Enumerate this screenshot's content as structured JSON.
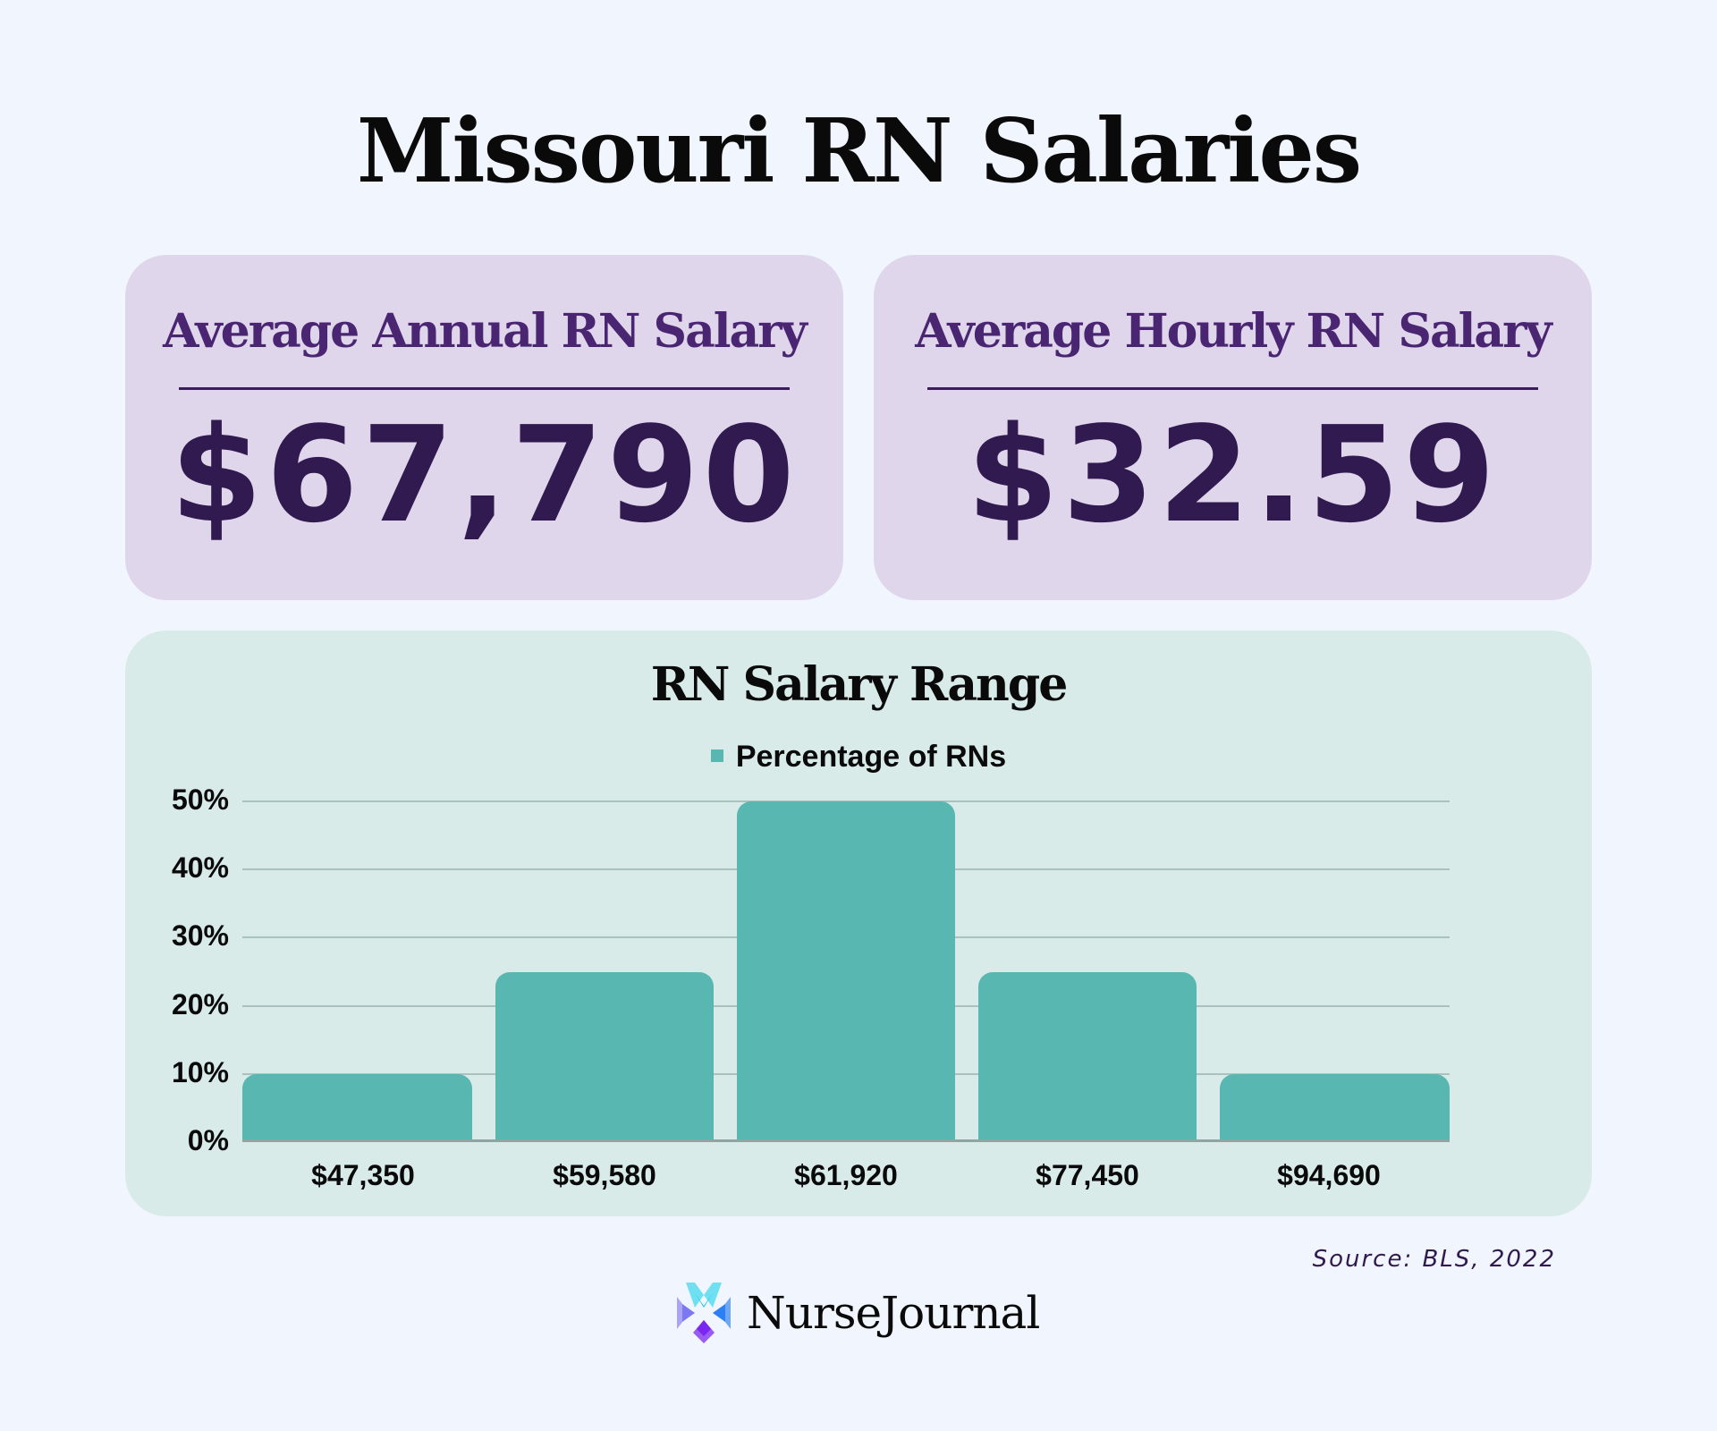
{
  "page": {
    "title": "Missouri RN Salaries"
  },
  "cards": [
    {
      "label": "Average Annual RN Salary",
      "value": "$67,790"
    },
    {
      "label": "Average Hourly RN Salary",
      "value": "$32.59"
    }
  ],
  "chart": {
    "title": "RN Salary Range",
    "legend_label": "Percentage of RNs",
    "bar_color": "#59b7b2",
    "y_ticks": [
      "50%",
      "40%",
      "30%",
      "20%",
      "10%",
      "0%"
    ],
    "x_labels": [
      "$47,350",
      "$59,580",
      "$61,920",
      "$77,450",
      "$94,690"
    ]
  },
  "footer": {
    "source": "Source: BLS, 2022",
    "brand": "NurseJournal"
  },
  "chart_data": {
    "type": "bar",
    "title": "RN Salary Range",
    "categories": [
      "$47,350",
      "$59,580",
      "$61,920",
      "$77,450",
      "$94,690"
    ],
    "series": [
      {
        "name": "Percentage of RNs",
        "values": [
          10,
          25,
          50,
          25,
          10
        ]
      }
    ],
    "xlabel": "",
    "ylabel": "",
    "ylim": [
      0,
      50
    ],
    "y_ticks": [
      0,
      10,
      20,
      30,
      40,
      50
    ],
    "y_tick_format": "percent",
    "grid": true,
    "legend_position": "top"
  }
}
